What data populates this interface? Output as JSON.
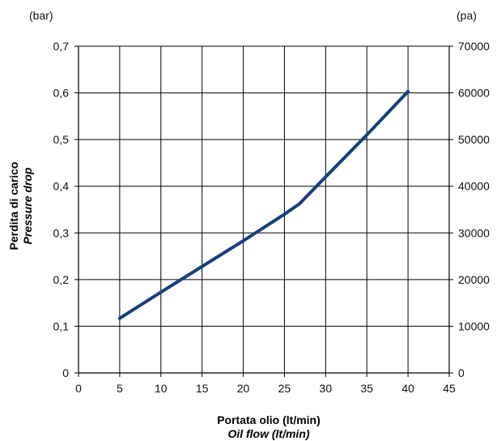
{
  "chart_data": {
    "type": "line",
    "title": "",
    "xlabel": "Portata olio (lt/min)",
    "xlabel_secondary": "Oil flow (lt/min)",
    "ylabel": "Perdita di carico",
    "ylabel_secondary": "Pressure drop",
    "left_unit": "(bar)",
    "right_unit": "(pa)",
    "xlim": [
      0,
      45
    ],
    "ylim": [
      0,
      0.7
    ],
    "y2lim": [
      0,
      70000
    ],
    "x_ticks": [
      "0",
      "5",
      "10",
      "15",
      "20",
      "25",
      "30",
      "35",
      "40",
      "45"
    ],
    "y_ticks": [
      "0",
      "0,1",
      "0,2",
      "0,3",
      "0,4",
      "0,5",
      "0,6",
      "0,7"
    ],
    "y2_ticks": [
      "0",
      "10000",
      "20000",
      "30000",
      "40000",
      "50000",
      "60000",
      "70000"
    ],
    "grid": true,
    "legend": "none",
    "series": [
      {
        "x": [
          5,
          10,
          15,
          20,
          25,
          26.8,
          30,
          35,
          40
        ],
        "values": [
          0.117,
          0.173,
          0.228,
          0.283,
          0.34,
          0.362,
          0.42,
          0.51,
          0.603
        ]
      }
    ],
    "colors": {
      "line": "#173f7d",
      "axis_title": "#1f4f8f",
      "grid": "#000000",
      "text": "#111111",
      "background": "#ffffff"
    }
  }
}
